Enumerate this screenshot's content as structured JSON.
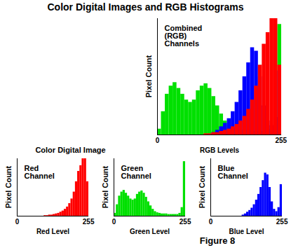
{
  "title": "Color Digital Images and RGB Histograms",
  "image_label": "Color Digital Image",
  "caption": "Figure 8",
  "chart_data": [
    {
      "type": "histogram",
      "title": "Combined (RGB) Channels",
      "xlabel": "RGB Levels",
      "ylabel": "Pixel Count",
      "bins": [
        0,
        8,
        16,
        24,
        32,
        40,
        48,
        56,
        64,
        72,
        80,
        88,
        96,
        104,
        112,
        120,
        128,
        136,
        144,
        152,
        160,
        168,
        176,
        184,
        192,
        200,
        208,
        216,
        224,
        232,
        240,
        248,
        256
      ],
      "series": [
        {
          "color": "#00e000",
          "values": [
            5,
            20,
            35,
            42,
            45,
            40,
            35,
            30,
            28,
            30,
            38,
            42,
            44,
            40,
            33,
            25,
            18,
            12,
            8,
            6,
            5,
            4,
            4,
            4,
            3,
            3,
            3,
            3,
            3,
            5,
            15,
            95
          ]
        },
        {
          "color": "#0000ff",
          "values": [
            0,
            0,
            0,
            0,
            0,
            0,
            0,
            0,
            0,
            0,
            0,
            0,
            0,
            0,
            2,
            4,
            7,
            10,
            14,
            20,
            28,
            38,
            50,
            62,
            75,
            72,
            50,
            25,
            12,
            8,
            15,
            55
          ]
        },
        {
          "color": "#ff0000",
          "values": [
            0,
            0,
            0,
            0,
            0,
            0,
            0,
            0,
            0,
            0,
            0,
            0,
            1,
            1,
            2,
            2,
            3,
            4,
            5,
            7,
            9,
            12,
            16,
            22,
            30,
            42,
            60,
            78,
            88,
            100,
            100,
            60
          ]
        }
      ],
      "xlim": [
        0,
        256
      ],
      "xticks": [
        0,
        255
      ],
      "ylim": [
        0,
        100
      ],
      "yticks": [],
      "grid": false,
      "tick_labels": "x"
    },
    {
      "type": "histogram",
      "title": "Red Channel",
      "xlabel": "Red Level",
      "ylabel": "Pixel Count",
      "bins": [
        0,
        8,
        16,
        24,
        32,
        40,
        48,
        56,
        64,
        72,
        80,
        88,
        96,
        104,
        112,
        120,
        128,
        136,
        144,
        152,
        160,
        168,
        176,
        184,
        192,
        200,
        208,
        216,
        224,
        232,
        240,
        248,
        256
      ],
      "series": [
        {
          "color": "#ff0000",
          "values": [
            0,
            0,
            0,
            0,
            0,
            0,
            0,
            0,
            0,
            0,
            0,
            0,
            1,
            1,
            2,
            2,
            3,
            4,
            5,
            7,
            9,
            12,
            16,
            22,
            30,
            42,
            60,
            78,
            88,
            100,
            100,
            60
          ]
        }
      ],
      "xlim": [
        0,
        256
      ],
      "xticks": [
        0,
        255
      ],
      "ylim": [
        0,
        100
      ],
      "yticks": [],
      "grid": false,
      "tick_labels": "x"
    },
    {
      "type": "histogram",
      "title": "Green Channel",
      "xlabel": "Green Level",
      "ylabel": "Pixel Count",
      "bins": [
        0,
        8,
        16,
        24,
        32,
        40,
        48,
        56,
        64,
        72,
        80,
        88,
        96,
        104,
        112,
        120,
        128,
        136,
        144,
        152,
        160,
        168,
        176,
        184,
        192,
        200,
        208,
        216,
        224,
        232,
        240,
        248,
        256
      ],
      "series": [
        {
          "color": "#00e000",
          "values": [
            5,
            20,
            35,
            42,
            45,
            40,
            35,
            30,
            28,
            30,
            38,
            42,
            44,
            40,
            33,
            25,
            18,
            12,
            8,
            6,
            5,
            4,
            4,
            4,
            3,
            3,
            3,
            3,
            3,
            5,
            15,
            95
          ]
        }
      ],
      "xlim": [
        0,
        256
      ],
      "xticks": [
        0,
        255
      ],
      "ylim": [
        0,
        100
      ],
      "yticks": [],
      "grid": false,
      "tick_labels": "x"
    },
    {
      "type": "histogram",
      "title": "Blue Channel",
      "xlabel": "Blue Level",
      "ylabel": "Pixel Count",
      "bins": [
        0,
        8,
        16,
        24,
        32,
        40,
        48,
        56,
        64,
        72,
        80,
        88,
        96,
        104,
        112,
        120,
        128,
        136,
        144,
        152,
        160,
        168,
        176,
        184,
        192,
        200,
        208,
        216,
        224,
        232,
        240,
        248,
        256
      ],
      "series": [
        {
          "color": "#0000ff",
          "values": [
            0,
            0,
            0,
            0,
            0,
            0,
            0,
            0,
            0,
            0,
            0,
            0,
            0,
            0,
            2,
            4,
            7,
            10,
            14,
            20,
            28,
            38,
            50,
            62,
            75,
            72,
            50,
            25,
            12,
            8,
            15,
            55
          ]
        }
      ],
      "xlim": [
        0,
        256
      ],
      "xticks": [
        0,
        255
      ],
      "ylim": [
        0,
        100
      ],
      "yticks": [],
      "grid": false,
      "tick_labels": "x"
    }
  ]
}
